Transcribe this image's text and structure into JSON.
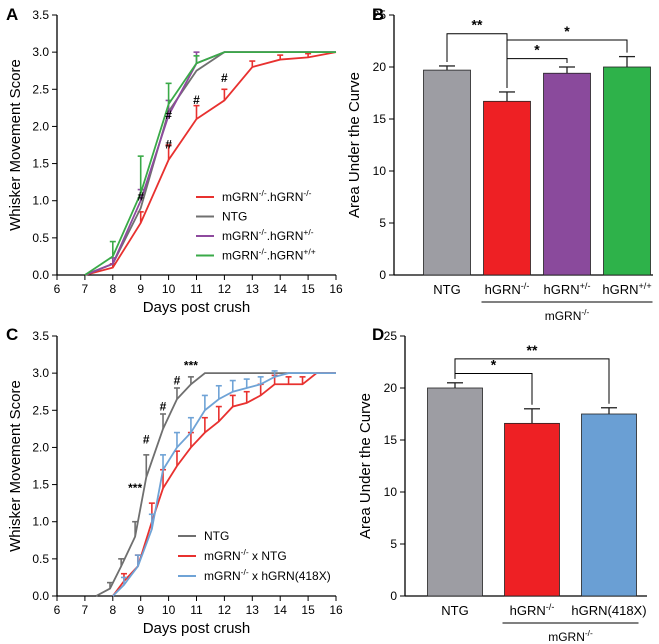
{
  "chart_data": [
    {
      "id": "A",
      "panel_label": "A",
      "type": "line",
      "xlabel": "Days post crush",
      "ylabel": "Whisker Movement Score",
      "xlim": [
        6,
        16
      ],
      "ylim": [
        0,
        3.5
      ],
      "xticks": [
        6,
        7,
        8,
        9,
        10,
        11,
        12,
        13,
        14,
        15,
        16
      ],
      "yticks": [
        "0.0",
        "0.5",
        "1.0",
        "1.5",
        "2.0",
        "2.5",
        "3.0",
        "3.5"
      ],
      "legend_position": "center-right",
      "series": [
        {
          "name": "mGRN-/-.hGRN-/-",
          "legend": {
            "base": "mGRN",
            "sup1": "-/-",
            "mid": ".hGRN",
            "sup2": "-/-"
          },
          "color": "#e8312f",
          "x": [
            7,
            8,
            9,
            10,
            11,
            12,
            13,
            14,
            15,
            16
          ],
          "y": [
            0,
            0.1,
            0.7,
            1.55,
            2.1,
            2.35,
            2.8,
            2.9,
            2.93,
            3.0
          ],
          "err": [
            0,
            0.05,
            0.15,
            0.2,
            0.18,
            0.15,
            0.08,
            0.06,
            0.05,
            0
          ]
        },
        {
          "name": "NTG",
          "legend": {
            "base": "NTG",
            "sup1": "",
            "mid": "",
            "sup2": ""
          },
          "color": "#707070",
          "x": [
            7,
            8,
            9,
            10,
            11,
            12,
            13,
            14,
            15,
            16
          ],
          "y": [
            0,
            0.15,
            0.9,
            2.2,
            2.75,
            3.0,
            3.0,
            3.0,
            3.0,
            3.0
          ],
          "err": [
            0,
            0,
            0,
            0,
            0,
            0,
            0,
            0,
            0,
            0
          ]
        },
        {
          "name": "mGRN-/-.hGRN+/-",
          "legend": {
            "base": "mGRN",
            "sup1": "-/-",
            "mid": ".hGRN",
            "sup2": "+/-"
          },
          "color": "#8e4a9e",
          "x": [
            7,
            8,
            9,
            10,
            11,
            12,
            13,
            14,
            15,
            16
          ],
          "y": [
            0,
            0.15,
            1.0,
            2.15,
            2.85,
            3.0,
            3.0,
            3.0,
            3.0,
            3.0
          ],
          "err": [
            0,
            0.08,
            0.15,
            0.2,
            0.15,
            0,
            0,
            0,
            0,
            0
          ]
        },
        {
          "name": "mGRN-/-.hGRN+/+",
          "legend": {
            "base": "mGRN",
            "sup1": "-/-",
            "mid": ".hGRN",
            "sup2": "+/+"
          },
          "color": "#3aaa48",
          "x": [
            7,
            8,
            9,
            10,
            11,
            12,
            13,
            14,
            15,
            16
          ],
          "y": [
            0,
            0.25,
            1.1,
            2.3,
            2.85,
            3.0,
            3.0,
            3.0,
            3.0,
            3.0
          ],
          "err": [
            0,
            0.2,
            0.5,
            0.28,
            0.1,
            0,
            0,
            0,
            0,
            0
          ]
        }
      ],
      "annotations": [
        {
          "text": "#",
          "x": 9,
          "y": 1.0
        },
        {
          "text": "#",
          "x": 10,
          "y": 2.1
        },
        {
          "text": "#",
          "x": 10,
          "y": 1.7
        },
        {
          "text": "#",
          "x": 11,
          "y": 2.3
        },
        {
          "text": "#",
          "x": 12,
          "y": 2.6
        }
      ]
    },
    {
      "id": "B",
      "panel_label": "B",
      "type": "bar",
      "ylabel": "Area Under the Curve",
      "ylim": [
        0,
        25
      ],
      "yticks": [
        "0",
        "5",
        "10",
        "15",
        "20",
        "25"
      ],
      "categories": [
        {
          "base": "NTG",
          "sup": ""
        },
        {
          "base": "hGRN",
          "sup": "-/-"
        },
        {
          "base": "hGRN",
          "sup": "+/-"
        },
        {
          "base": "hGRN",
          "sup": "+/+"
        }
      ],
      "values": [
        19.7,
        16.7,
        19.4,
        20.0
      ],
      "errors": [
        0.4,
        0.9,
        0.6,
        1.0
      ],
      "colors": [
        "#9d9da3",
        "#ee2024",
        "#8a4a9c",
        "#2eb24a"
      ],
      "group_label": {
        "base": "mGRN",
        "sup": "-/-"
      },
      "group_span": [
        1,
        3
      ],
      "significance": [
        {
          "from": 0,
          "to": 1,
          "text": "**",
          "y": 23.2
        },
        {
          "from": 1,
          "to": 2,
          "text": "*",
          "y": 20.8
        },
        {
          "from": 1,
          "to": 3,
          "text": "*",
          "y": 22.6
        }
      ]
    },
    {
      "id": "C",
      "panel_label": "C",
      "type": "line",
      "xlabel": "Days post crush",
      "ylabel": "Whisker Movement Score",
      "xlim": [
        6,
        16
      ],
      "ylim": [
        0,
        3.5
      ],
      "xticks": [
        6,
        7,
        8,
        9,
        10,
        11,
        12,
        13,
        14,
        15,
        16
      ],
      "yticks": [
        "0.0",
        "0.5",
        "1.0",
        "1.5",
        "2.0",
        "2.5",
        "3.0",
        "3.5"
      ],
      "legend_position": "bottom-center",
      "series": [
        {
          "name": "NTG",
          "legend": {
            "base": "NTG",
            "sup": "",
            "rest": ""
          },
          "color": "#6f6f6f",
          "x": [
            7.4,
            7.9,
            8.3,
            8.8,
            9.2,
            9.8,
            10.3,
            10.8,
            11.3,
            12,
            13,
            14,
            15,
            16
          ],
          "y": [
            0,
            0.1,
            0.4,
            0.8,
            1.6,
            2.25,
            2.65,
            2.85,
            3.0,
            3.0,
            3.0,
            3.0,
            3.0,
            3.0
          ],
          "err": [
            0,
            0.08,
            0.1,
            0.2,
            0.3,
            0.2,
            0.15,
            0.1,
            0,
            0,
            0,
            0,
            0,
            0
          ]
        },
        {
          "name": "mGRN-/- x NTG",
          "legend": {
            "base": "mGRN",
            "sup": "-/-",
            "rest": " x NTG"
          },
          "color": "#e8312f",
          "x": [
            8,
            8.4,
            8.9,
            9.4,
            9.8,
            10.3,
            10.8,
            11.3,
            11.8,
            12.3,
            12.8,
            13.3,
            13.8,
            14.3,
            14.8,
            15.3,
            16
          ],
          "y": [
            0,
            0.2,
            0.4,
            1.0,
            1.45,
            1.75,
            2.0,
            2.2,
            2.35,
            2.55,
            2.6,
            2.7,
            2.85,
            2.85,
            2.85,
            3.0,
            3.0
          ],
          "err": [
            0,
            0.1,
            0.15,
            0.25,
            0.25,
            0.2,
            0.2,
            0.2,
            0.2,
            0.15,
            0.15,
            0.15,
            0.12,
            0.1,
            0.1,
            0,
            0
          ]
        },
        {
          "name": "mGRN-/- x hGRN(418X)",
          "legend": {
            "base": "mGRN",
            "sup": "-/-",
            "rest": " x hGRN(418X)"
          },
          "color": "#6fa3d6",
          "x": [
            8,
            8.4,
            8.9,
            9.4,
            9.8,
            10.3,
            10.8,
            11.3,
            11.8,
            12.3,
            12.8,
            13.3,
            13.8,
            14.3,
            14.8,
            15.3,
            16
          ],
          "y": [
            0,
            0.15,
            0.4,
            0.9,
            1.7,
            2.0,
            2.2,
            2.5,
            2.65,
            2.75,
            2.8,
            2.85,
            2.95,
            3.0,
            3.0,
            3.0,
            3.0
          ],
          "err": [
            0,
            0.1,
            0.15,
            0.2,
            0.2,
            0.2,
            0.2,
            0.2,
            0.18,
            0.15,
            0.12,
            0.1,
            0.08,
            0,
            0,
            0,
            0
          ]
        }
      ],
      "annotations": [
        {
          "text": "***",
          "x": 8.8,
          "y": 1.4
        },
        {
          "text": "#",
          "x": 9.2,
          "y": 2.05
        },
        {
          "text": "#",
          "x": 9.8,
          "y": 2.5
        },
        {
          "text": "#",
          "x": 10.3,
          "y": 2.85
        },
        {
          "text": "***",
          "x": 10.8,
          "y": 3.05
        }
      ]
    },
    {
      "id": "D",
      "panel_label": "D",
      "type": "bar",
      "ylabel": "Area Under the Curve",
      "ylim": [
        0,
        25
      ],
      "yticks": [
        "0",
        "5",
        "10",
        "15",
        "20",
        "25"
      ],
      "categories": [
        {
          "base": "NTG",
          "sup": ""
        },
        {
          "base": "hGRN",
          "sup": "-/-"
        },
        {
          "base": "hGRN(418X)",
          "sup": ""
        }
      ],
      "values": [
        20.0,
        16.6,
        17.5
      ],
      "errors": [
        0.5,
        1.4,
        0.6
      ],
      "colors": [
        "#9d9da3",
        "#ee2024",
        "#6a9fd4"
      ],
      "group_label": {
        "base": "mGRN",
        "sup": "-/-"
      },
      "group_span": [
        1,
        2
      ],
      "significance": [
        {
          "from": 0,
          "to": 1,
          "text": "*",
          "y": 21.4
        },
        {
          "from": 0,
          "to": 2,
          "text": "**",
          "y": 22.8
        }
      ]
    }
  ]
}
